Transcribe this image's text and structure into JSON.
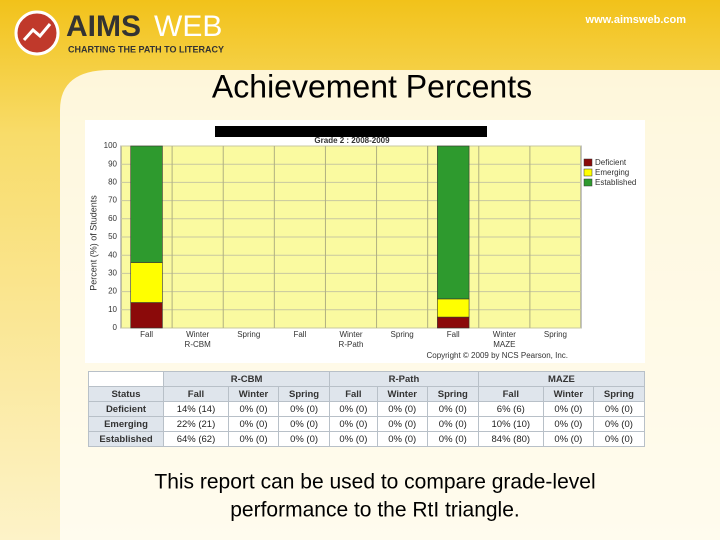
{
  "header": {
    "logo": [
      "AIMS",
      "WEB"
    ],
    "tagline": "CHARTING THE PATH TO LITERACY",
    "url": "www.aimsweb.com"
  },
  "slide_title": "Achievement Percents",
  "chart_data": {
    "type": "bar",
    "stacked": true,
    "title": "Grade 2 : 2008-2009",
    "y_label": "Percent (%) of Students",
    "categories": [
      "Fall",
      "Winter",
      "Spring",
      "Fall",
      "Winter",
      "Spring",
      "Fall",
      "Winter",
      "Spring"
    ],
    "groups": [
      "R-CBM",
      "R-Path",
      "MAZE"
    ],
    "series": [
      {
        "name": "Deficient",
        "color": "#8b0a0a",
        "values": [
          14,
          0,
          0,
          0,
          0,
          0,
          6,
          0,
          0
        ]
      },
      {
        "name": "Emerging",
        "color": "#ffff00",
        "values": [
          22,
          0,
          0,
          0,
          0,
          0,
          10,
          0,
          0
        ]
      },
      {
        "name": "Established",
        "color": "#2e9a2e",
        "values": [
          64,
          0,
          0,
          0,
          0,
          0,
          84,
          0,
          0
        ]
      }
    ],
    "ylim": [
      0,
      100
    ],
    "yticks": [
      0,
      10,
      20,
      30,
      40,
      50,
      60,
      70,
      80,
      90,
      100
    ],
    "grid": true,
    "legend": "top-right",
    "copyright": "Copyright © 2009 by NCS Pearson, Inc."
  },
  "table": {
    "status_header": "Status",
    "groups": [
      "R-CBM",
      "R-Path",
      "MAZE"
    ],
    "seasons": [
      "Fall",
      "Winter",
      "Spring",
      "Fall",
      "Winter",
      "Spring",
      "Fall",
      "Winter",
      "Spring"
    ],
    "rows": [
      [
        "Deficient",
        "14% (14)",
        "0% (0)",
        "0% (0)",
        "0% (0)",
        "0% (0)",
        "0% (0)",
        "6% (6)",
        "0% (0)",
        "0% (0)"
      ],
      [
        "Emerging",
        "22% (21)",
        "0% (0)",
        "0% (0)",
        "0% (0)",
        "0% (0)",
        "0% (0)",
        "10% (10)",
        "0% (0)",
        "0% (0)"
      ],
      [
        "Established",
        "64% (62)",
        "0% (0)",
        "0% (0)",
        "0% (0)",
        "0% (0)",
        "0% (0)",
        "84% (80)",
        "0% (0)",
        "0% (0)"
      ]
    ]
  },
  "caption": [
    "This report can be used to compare grade-level",
    "performance to the RtI triangle."
  ]
}
